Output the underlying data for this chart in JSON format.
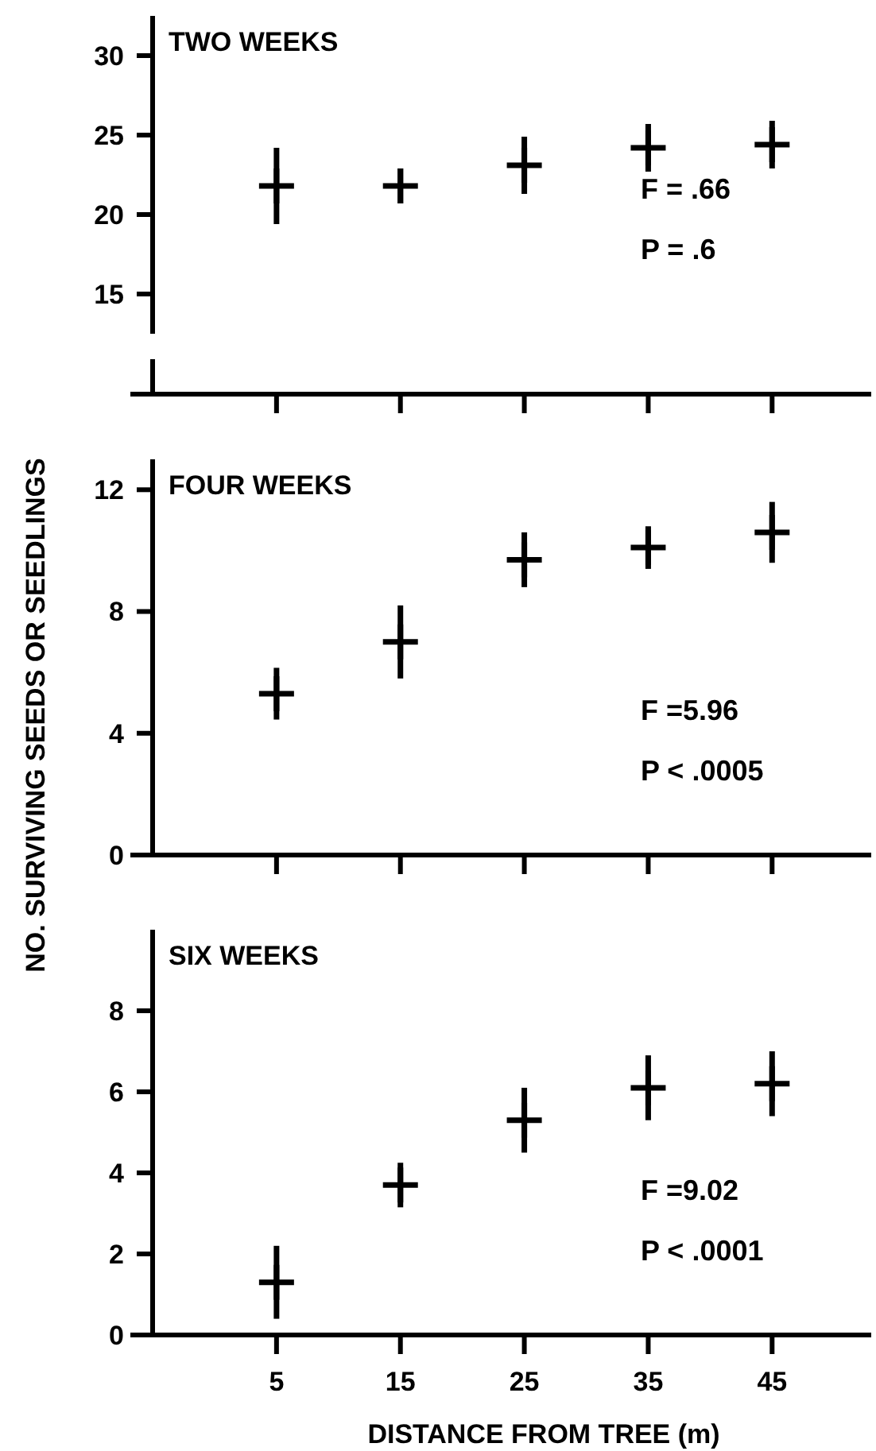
{
  "chart_data": [
    {
      "type": "scatter",
      "title": "TWO WEEKS",
      "x": [
        5,
        15,
        25,
        35,
        45
      ],
      "values": [
        21.8,
        21.8,
        23.1,
        24.2,
        24.4
      ],
      "errors": [
        2.4,
        1.1,
        1.8,
        1.5,
        1.5
      ],
      "color": "#000000",
      "marker": "cross",
      "xlim": [
        -5,
        53
      ],
      "xticks": [
        5,
        15,
        25,
        35,
        45
      ],
      "ylim": [
        12.5,
        32.5
      ],
      "yticks": [
        15,
        20,
        25,
        30
      ],
      "tick_labels": "y",
      "annotations": [
        "F = .66",
        "P = .6"
      ]
    },
    {
      "type": "scatter",
      "title": "FOUR WEEKS",
      "ylabel": "NO. SURVIVING SEEDS OR SEEDLINGS",
      "x": [
        5,
        15,
        25,
        35,
        45
      ],
      "values": [
        5.3,
        7.0,
        9.7,
        10.1,
        10.6
      ],
      "errors": [
        0.85,
        1.2,
        0.9,
        0.7,
        1.0
      ],
      "color": "#000000",
      "marker": "cross",
      "xlim": [
        -5,
        53
      ],
      "xticks": [
        5,
        15,
        25,
        35,
        45
      ],
      "ylim": [
        0,
        13
      ],
      "yticks": [
        0,
        4,
        8,
        12
      ],
      "tick_labels": "y",
      "annotations": [
        "F =5.96",
        "P < .0005"
      ]
    },
    {
      "type": "scatter",
      "title": "SIX WEEKS",
      "xlabel": "DISTANCE FROM TREE (m)",
      "x": [
        5,
        15,
        25,
        35,
        45
      ],
      "values": [
        1.3,
        3.7,
        5.3,
        6.1,
        6.2
      ],
      "errors": [
        0.9,
        0.55,
        0.8,
        0.8,
        0.8
      ],
      "color": "#000000",
      "marker": "cross",
      "xlim": [
        -5,
        53
      ],
      "xticks": [
        5,
        15,
        25,
        35,
        45
      ],
      "ylim": [
        0,
        10
      ],
      "yticks": [
        0,
        2,
        4,
        6,
        8
      ],
      "annotations": [
        "F =9.02",
        "P < .0001"
      ]
    }
  ]
}
